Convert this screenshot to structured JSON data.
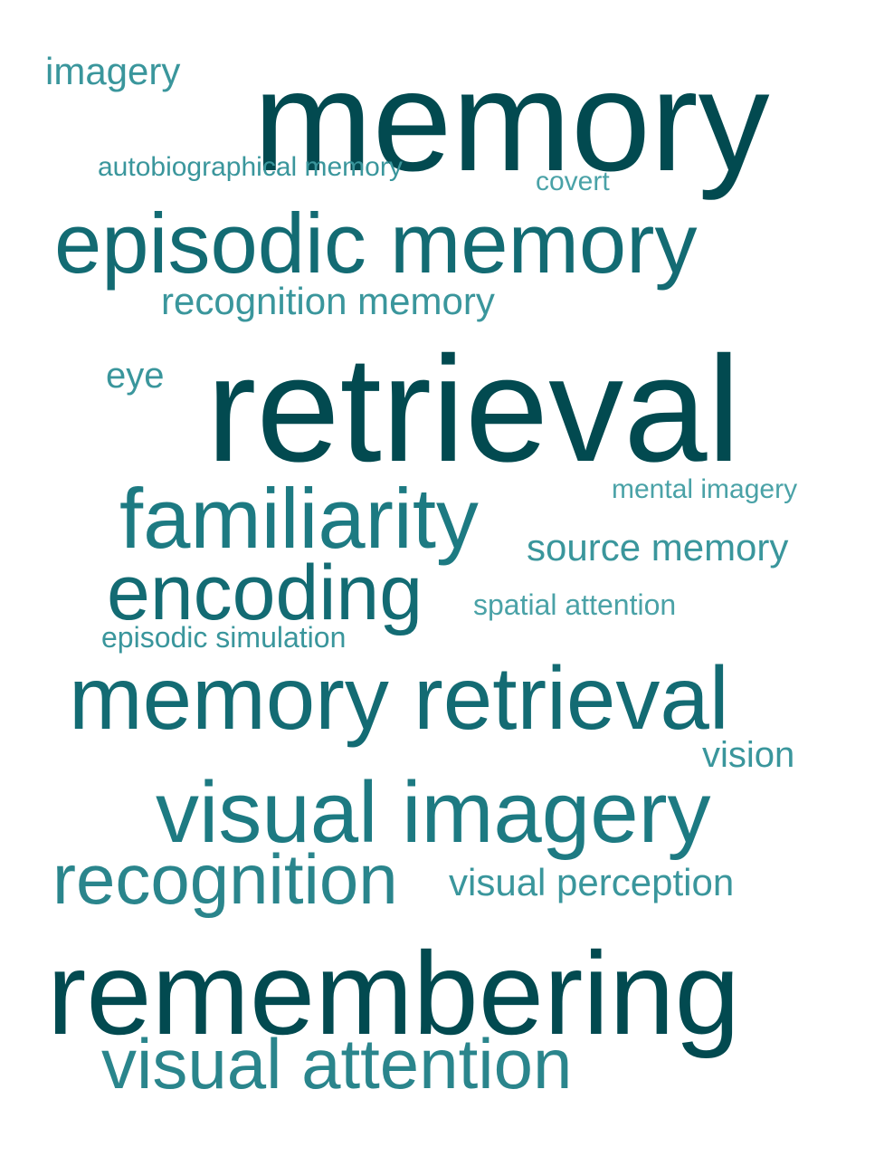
{
  "words": {
    "imagery": "imagery",
    "memory": "memory",
    "autobiographical_memory": "autobiographical memory",
    "covert": "covert",
    "episodic_memory": "episodic memory",
    "recognition_memory": "recognition memory",
    "eye": "eye",
    "retrieval": "retrieval",
    "mental_imagery": "mental imagery",
    "familiarity": "familiarity",
    "source_memory": "source memory",
    "encoding": "encoding",
    "spatial_attention": "spatial attention",
    "episodic_simulation": "episodic simulation",
    "memory_retrieval": "memory retrieval",
    "vision": "vision",
    "visual_imagery": "visual imagery",
    "recognition": "recognition",
    "visual_perception": "visual perception",
    "remembering": "remembering",
    "visual_attention": "visual attention"
  },
  "colors": {
    "darkest": "#024a50",
    "lightest": "#4aa2a7"
  }
}
